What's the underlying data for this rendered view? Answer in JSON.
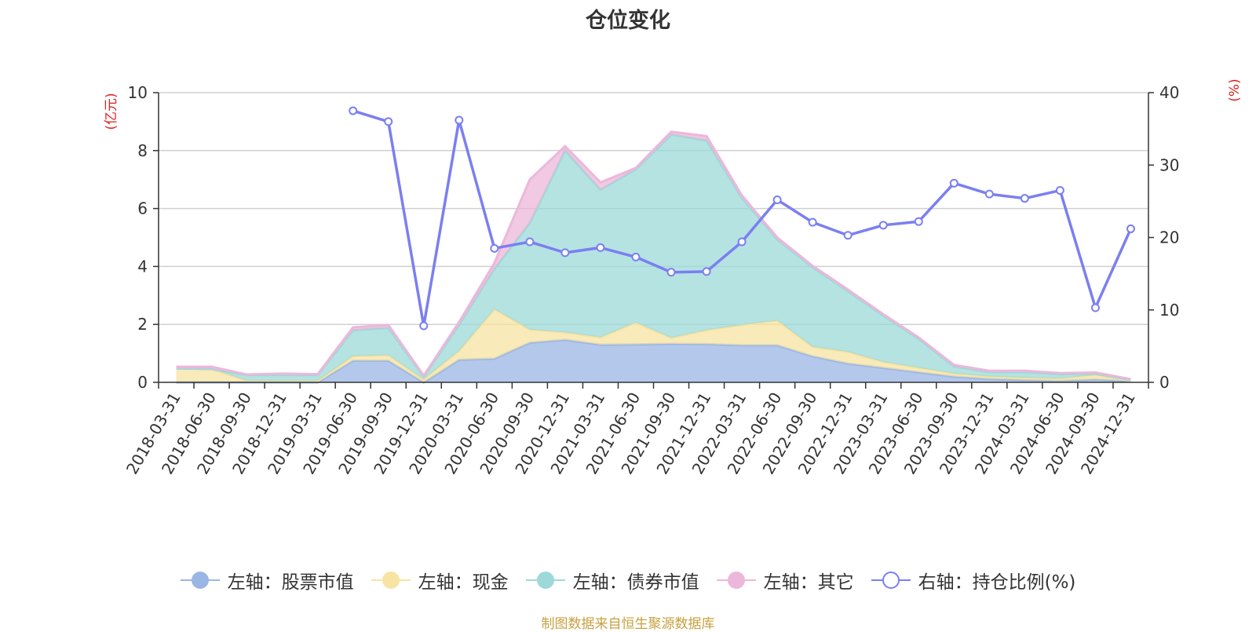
{
  "chart_data": {
    "type": "area",
    "title": "仓位变化",
    "source_note": "制图数据来自恒生聚源数据库",
    "x": [
      "2018-03-31",
      "2018-06-30",
      "2018-09-30",
      "2018-12-31",
      "2019-03-31",
      "2019-06-30",
      "2019-09-30",
      "2019-12-31",
      "2020-03-31",
      "2020-06-30",
      "2020-09-30",
      "2020-12-31",
      "2021-03-31",
      "2021-06-30",
      "2021-09-30",
      "2021-12-31",
      "2022-03-31",
      "2022-06-30",
      "2022-09-30",
      "2022-12-31",
      "2023-03-31",
      "2023-06-30",
      "2023-09-30",
      "2023-12-31",
      "2024-03-31",
      "2024-06-30",
      "2024-09-30",
      "2024-12-31"
    ],
    "left_axis": {
      "unit": "(亿元)",
      "ylim": [
        0,
        10
      ],
      "ticks": [
        "0",
        "2",
        "4",
        "6",
        "8",
        "10"
      ]
    },
    "right_axis": {
      "unit": "(%)",
      "ylim": [
        0,
        40
      ],
      "ticks": [
        "0",
        "10",
        "20",
        "30",
        "40"
      ]
    },
    "series": [
      {
        "name": "左轴：股票市值",
        "axis": "left",
        "stacked": true,
        "color": "#9ab6e4",
        "values": [
          0,
          0,
          0,
          0,
          0,
          0.75,
          0.75,
          0,
          0.78,
          0.82,
          1.37,
          1.47,
          1.3,
          1.31,
          1.33,
          1.32,
          1.28,
          1.28,
          0.9,
          0.65,
          0.5,
          0.35,
          0.2,
          0.12,
          0.08,
          0.05,
          0.1,
          0.04
        ]
      },
      {
        "name": "左轴：现金",
        "axis": "left",
        "stacked": true,
        "color": "#f7e3a2",
        "values": [
          0.48,
          0.46,
          0.05,
          0.05,
          0.05,
          0.15,
          0.18,
          0.1,
          0.3,
          1.7,
          0.45,
          0.25,
          0.25,
          0.75,
          0.2,
          0.48,
          0.7,
          0.85,
          0.32,
          0.4,
          0.2,
          0.15,
          0.1,
          0.08,
          0.08,
          0.08,
          0.15,
          0.02
        ]
      },
      {
        "name": "左轴：债券市值",
        "axis": "left",
        "stacked": true,
        "color": "#9cd9d8",
        "values": [
          0,
          0,
          0.2,
          0.2,
          0.2,
          0.9,
          0.95,
          0.1,
          0.9,
          1.4,
          3.68,
          6.28,
          5.1,
          5.29,
          7.02,
          6.55,
          4.39,
          2.8,
          2.75,
          2.1,
          1.6,
          1.0,
          0.25,
          0.15,
          0.2,
          0.15,
          0.05,
          0.02
        ]
      },
      {
        "name": "左轴：其它",
        "axis": "left",
        "stacked": true,
        "color": "#ecb7da",
        "values": [
          0.06,
          0.08,
          0.02,
          0.05,
          0.03,
          0.1,
          0.1,
          0.03,
          0.1,
          0.2,
          1.5,
          0.15,
          0.25,
          0.05,
          0.1,
          0.15,
          0.08,
          0.07,
          0.05,
          0.05,
          0.05,
          0.05,
          0.05,
          0.05,
          0.04,
          0.04,
          0.04,
          0.03
        ]
      },
      {
        "name": "右轴：持仓比例(%)",
        "axis": "right",
        "type": "line",
        "color": "#7b7ff0",
        "values": [
          null,
          null,
          null,
          null,
          null,
          37.5,
          36.0,
          7.8,
          36.2,
          18.5,
          19.4,
          17.9,
          18.6,
          17.3,
          15.2,
          15.3,
          19.4,
          25.2,
          22.1,
          20.3,
          21.7,
          22.2,
          27.5,
          26.0,
          25.4,
          26.5,
          10.3,
          21.2
        ]
      }
    ],
    "legend": {
      "placement": "bottom-center"
    },
    "grid": true
  }
}
